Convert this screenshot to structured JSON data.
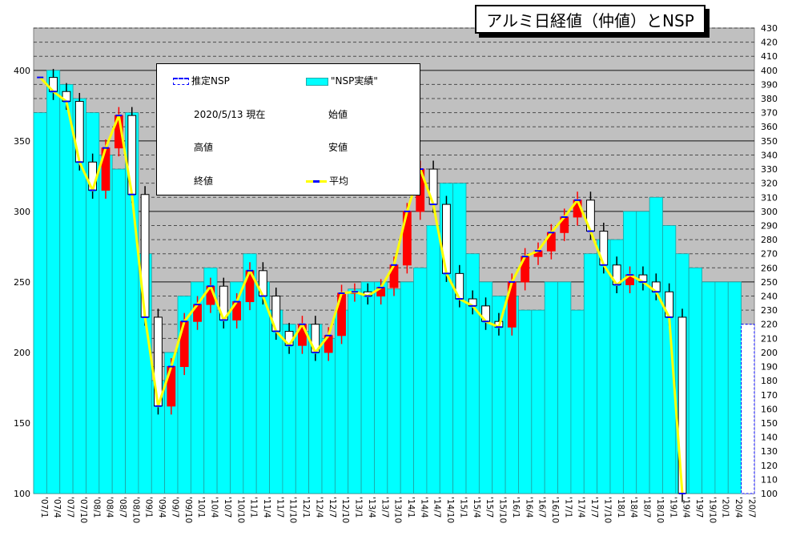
{
  "title": "アルミ日経値（仲値）とNSP",
  "legend": {
    "nsp_estimate": "推定NSP",
    "nsp_actual": "\"NSP実績\"",
    "as_of": "2020/5/13  現在",
    "open": "始値",
    "high": "高値",
    "low": "安値",
    "close": "終値",
    "average": "平均"
  },
  "colors": {
    "plot_bg": "#c0c0c0",
    "nsp_fill": "#00ffff",
    "average_line": "#ffff00",
    "average_marker": "#0000ff",
    "up_candle": "#ff0000",
    "down_candle": "#000000"
  },
  "chart_data": {
    "type": "bar",
    "left_axis": {
      "ylim": [
        100,
        420
      ],
      "ticks": [
        100,
        150,
        200,
        250,
        300,
        350,
        400
      ]
    },
    "right_axis": {
      "ylim": [
        100,
        430
      ],
      "step": 10
    },
    "x_tick_labels": [
      "'07/1",
      "'07/4",
      "'07/7",
      "'07/10",
      "'08/1",
      "'08/4",
      "'08/7",
      "'08/10",
      "'09/1",
      "'09/4",
      "'09/7",
      "'09/10",
      "'10/1",
      "'10/4",
      "'10/7",
      "'10/10",
      "'11/1",
      "'11/4",
      "'11/7",
      "'11/10",
      "'12/1",
      "'12/4",
      "'12/7",
      "'12/10",
      "'13/1",
      "'13/4",
      "'13/7",
      "'13/10",
      "'14/1",
      "'14/4",
      "'14/7",
      "'14/10",
      "'15/1",
      "'15/4",
      "'15/7",
      "'15/10",
      "'16/1",
      "'16/4",
      "'16/7",
      "'16/10",
      "'17/1",
      "'17/4",
      "'17/7",
      "'17/10",
      "'18/1",
      "'18/4",
      "'18/7",
      "'18/10",
      "'19/1",
      "'19/4",
      "'19/7",
      "'19/10",
      "'20/1",
      "'20/4",
      "'20/7"
    ],
    "series": [
      {
        "name": "\"NSP実績\"",
        "values": [
          370,
          400,
          390,
          380,
          370,
          340,
          330,
          370,
          270,
          180,
          200,
          240,
          250,
          260,
          230,
          250,
          270,
          250,
          230,
          220,
          215,
          220,
          210,
          230,
          245,
          250,
          250,
          245,
          250,
          260,
          290,
          320,
          320,
          270,
          250,
          240,
          240,
          230,
          230,
          250,
          250,
          230,
          270,
          280,
          280,
          300,
          300,
          310,
          290,
          270,
          260,
          250,
          250,
          250
        ]
      },
      {
        "name": "推定NSP",
        "values": [
          null,
          null,
          null,
          null,
          null,
          null,
          null,
          null,
          null,
          null,
          null,
          null,
          null,
          null,
          null,
          null,
          null,
          null,
          null,
          null,
          null,
          null,
          null,
          null,
          null,
          null,
          null,
          null,
          null,
          null,
          null,
          null,
          null,
          null,
          null,
          null,
          null,
          null,
          null,
          null,
          null,
          null,
          null,
          null,
          null,
          null,
          null,
          null,
          null,
          null,
          null,
          null,
          null,
          null,
          220
        ]
      },
      {
        "name": "平均",
        "values": [
          395,
          385,
          378,
          335,
          315,
          345,
          368,
          312,
          225,
          162,
          190,
          222,
          234,
          247,
          223,
          236,
          258,
          240,
          215,
          205,
          220,
          200,
          212,
          242,
          243,
          240,
          246,
          262,
          300,
          330,
          305,
          256,
          238,
          233,
          222,
          218,
          250,
          268,
          272,
          285,
          296,
          308,
          286,
          262,
          248,
          255,
          250,
          243,
          225,
          100
        ]
      }
    ]
  }
}
